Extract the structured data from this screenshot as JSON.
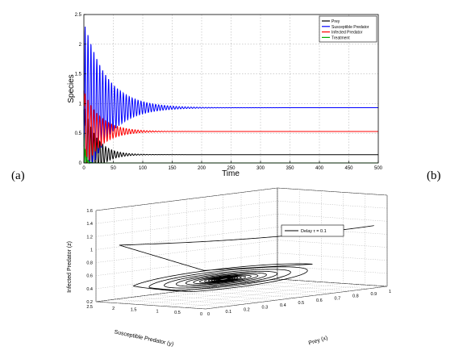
{
  "panel_labels": {
    "a": "(a)",
    "b": "(b)"
  },
  "chart_data": [
    {
      "type": "line",
      "xlabel": "Time",
      "ylabel": "Species",
      "xlim": [
        0,
        500
      ],
      "ylim": [
        0,
        2.5
      ],
      "x_ticks": [
        0,
        50,
        100,
        150,
        200,
        250,
        300,
        350,
        400,
        450,
        500
      ],
      "y_ticks": [
        0,
        0.5,
        1,
        1.5,
        2,
        2.5
      ],
      "grid": true,
      "legend_position": "top-right",
      "series": [
        {
          "name": "Prey",
          "color": "#000000",
          "start": 0.9,
          "peak": 1.0,
          "equilibrium": 0.14,
          "settle_time": 80,
          "period": 5
        },
        {
          "name": "Susceptible Predator",
          "color": "#0000ff",
          "start": 0.3,
          "peak": 2.42,
          "equilibrium": 0.93,
          "settle_time": 150,
          "period": 5
        },
        {
          "name": "Infected Predator",
          "color": "#ff0000",
          "start": 1.22,
          "peak": 1.22,
          "equilibrium": 0.53,
          "settle_time": 110,
          "period": 5
        },
        {
          "name": "Treatment",
          "color": "#00aa00",
          "start": 0.5,
          "peak": 0.5,
          "equilibrium": 0.0,
          "settle_time": 12,
          "period": 5
        }
      ]
    },
    {
      "type": "line3d",
      "xlabel": "Prey (x)",
      "ylabel": "Susceptible Predator (y)",
      "zlabel": "Infected Predator (z)",
      "xlim": [
        0,
        1
      ],
      "ylim": [
        0,
        2.5
      ],
      "zlim": [
        0.2,
        1.6
      ],
      "x_ticks": [
        "0",
        "0.1",
        "0.2",
        "0.3",
        "0.4",
        "0.5",
        "0.6",
        "0.7",
        "0.8",
        "0.9",
        "1"
      ],
      "y_ticks": [
        "0",
        "0.5",
        "1",
        "1.5",
        "2",
        "2.5"
      ],
      "z_ticks": [
        "0.2",
        "0.4",
        "0.6",
        "0.8",
        "1",
        "1.2",
        "1.4",
        "1.6"
      ],
      "grid": true,
      "legend_position": "top-right",
      "series": [
        {
          "name": "Delay τ = 0.1",
          "color": "#000000",
          "start": [
            1.0,
            0.3,
            1.12
          ],
          "equilibrium": [
            0.33,
            0.95,
            0.5
          ]
        }
      ]
    }
  ]
}
